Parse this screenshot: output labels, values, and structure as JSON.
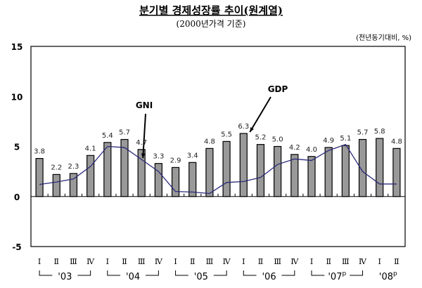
{
  "chart_data": {
    "type": "bar",
    "title": "분기별 경제성장률 추이(원계열)",
    "subtitle": "(2000년가격 기준)",
    "unit_label": "(전년동기대비, %)",
    "ylim": [
      -5,
      15
    ],
    "yticks": [
      "15",
      "10",
      "5",
      "0",
      "-5"
    ],
    "ytick_values": [
      15,
      10,
      5,
      0,
      -5
    ],
    "categories": [
      "I",
      "II",
      "III",
      "IV",
      "I",
      "II",
      "III",
      "IV",
      "I",
      "II",
      "III",
      "IV",
      "I",
      "II",
      "III",
      "IV",
      "I",
      "II",
      "III",
      "IV",
      "I",
      "II"
    ],
    "quarters": [
      "Ⅰ",
      "Ⅱ",
      "Ⅲ",
      "Ⅳ",
      "Ⅰ",
      "Ⅱ",
      "Ⅲ",
      "Ⅳ",
      "Ⅰ",
      "Ⅱ",
      "Ⅲ",
      "Ⅳ",
      "Ⅰ",
      "Ⅱ",
      "Ⅲ",
      "Ⅳ",
      "Ⅰ",
      "Ⅱ",
      "Ⅲ",
      "Ⅳ",
      "Ⅰ",
      "Ⅱ"
    ],
    "years": [
      {
        "label": "'03",
        "sup": ""
      },
      {
        "label": "'04",
        "sup": ""
      },
      {
        "label": "'05",
        "sup": ""
      },
      {
        "label": "'06",
        "sup": ""
      },
      {
        "label": "'07",
        "sup": "p"
      },
      {
        "label": "'08",
        "sup": "p"
      }
    ],
    "series": [
      {
        "name": "GDP",
        "type": "bar",
        "color": "#999999",
        "values": [
          3.8,
          2.2,
          2.3,
          4.1,
          5.4,
          5.7,
          4.7,
          3.3,
          2.9,
          3.4,
          4.8,
          5.5,
          6.3,
          5.2,
          5.0,
          4.2,
          4.0,
          4.9,
          5.1,
          5.7,
          5.8,
          4.8
        ],
        "labels": [
          "3.8",
          "2.2",
          "2.3",
          "4.1",
          "5.4",
          "5.7",
          "4.7",
          "3.3",
          "2.9",
          "3.4",
          "4.8",
          "5.5",
          "6.3",
          "5.2",
          "5.0",
          "4.2",
          "4.0",
          "4.9",
          "5.1",
          "5.7",
          "5.8",
          "4.8"
        ]
      },
      {
        "name": "GNI",
        "type": "line",
        "color": "#2a2a7a",
        "values": [
          1.2,
          1.45,
          1.75,
          3.0,
          5.0,
          4.9,
          3.7,
          2.5,
          0.5,
          0.45,
          0.3,
          1.4,
          1.5,
          1.9,
          3.2,
          3.75,
          3.6,
          4.6,
          5.2,
          2.5,
          1.25,
          1.25
        ]
      }
    ],
    "annotations": [
      {
        "text": "GNI",
        "points_to": "GNI line near '04 III"
      },
      {
        "text": "GDP",
        "points_to": "GDP bar '06 I"
      }
    ]
  }
}
